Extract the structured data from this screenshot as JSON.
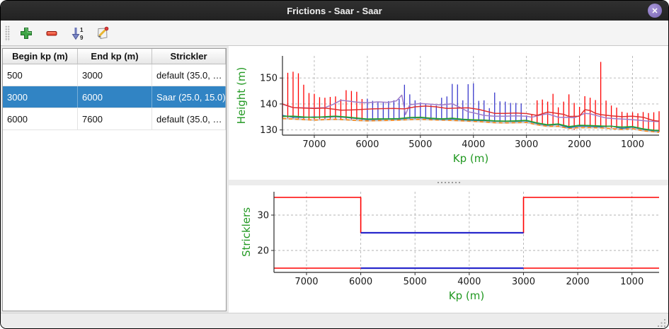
{
  "window": {
    "title": "Frictions - Saar - Saar",
    "close_glyph": "✕"
  },
  "toolbar": {
    "buttons": [
      {
        "name": "add",
        "icon": "plus-icon"
      },
      {
        "name": "remove",
        "icon": "minus-icon"
      },
      {
        "name": "sort",
        "icon": "sort-numeric-icon"
      },
      {
        "name": "edit",
        "icon": "edit-icon"
      }
    ]
  },
  "table": {
    "columns": [
      "Begin kp (m)",
      "End kp (m)",
      "Strickler"
    ],
    "rows": [
      {
        "begin": "500",
        "end": "3000",
        "strickler": "default (35.0, …",
        "selected": false
      },
      {
        "begin": "3000",
        "end": "6000",
        "strickler": "Saar (25.0, 15.0)",
        "selected": true
      },
      {
        "begin": "6000",
        "end": "7600",
        "strickler": "default (35.0, …",
        "selected": false
      }
    ],
    "selected_color": "#3184c4"
  },
  "chart_data": [
    {
      "type": "line",
      "title": "",
      "xlabel": "Kp (m)",
      "ylabel": "Height (m)",
      "label_color": "#229922",
      "x_range": [
        7600,
        500
      ],
      "x_reversed": true,
      "y_range": [
        128,
        158.5
      ],
      "x_ticks": [
        7000,
        6000,
        5000,
        4000,
        3000,
        2000,
        1000
      ],
      "y_ticks": [
        130,
        140,
        150
      ],
      "grid": true,
      "cross_sections": {
        "color": "#ff0000",
        "selected_color": "#3a3acc",
        "selected_kp_range": [
          3000,
          6000
        ],
        "kp": [
          7600,
          7500,
          7400,
          7300,
          7200,
          7100,
          7000,
          6900,
          6800,
          6700,
          6600,
          6500,
          6400,
          6300,
          6200,
          6100,
          6000,
          5900,
          5800,
          5700,
          5600,
          5500,
          5400,
          5300,
          5200,
          5100,
          5000,
          4900,
          4800,
          4700,
          4600,
          4500,
          4400,
          4300,
          4200,
          4100,
          4000,
          3900,
          3800,
          3700,
          3600,
          3500,
          3400,
          3300,
          3200,
          3100,
          3000,
          2900,
          2800,
          2700,
          2600,
          2500,
          2400,
          2300,
          2200,
          2100,
          2000,
          1900,
          1800,
          1700,
          1600,
          1500,
          1400,
          1300,
          1200,
          1100,
          1000,
          900,
          800,
          700,
          600,
          500
        ],
        "top": [
          150.2,
          152.0,
          152.4,
          151.8,
          147.4,
          144.2,
          143.9,
          142.6,
          142.4,
          142.7,
          142.9,
          141.8,
          145.3,
          145.0,
          144.7,
          141.9,
          142.0,
          141.2,
          140.9,
          140.6,
          141.1,
          141.4,
          141.9,
          147.4,
          143.7,
          141.4,
          140.6,
          140.1,
          139.6,
          139.4,
          142.4,
          142.9,
          147.7,
          147.5,
          141.4,
          147.6,
          147.9,
          141.2,
          141.4,
          138.4,
          144.4,
          141.0,
          140.9,
          140.4,
          140.4,
          140.2,
          135.6,
          136.1,
          141.4,
          141.7,
          140.9,
          143.9,
          138.7,
          140.9,
          143.7,
          140.4,
          138.9,
          143.0,
          142.4,
          141.5,
          156.2,
          141.3,
          139.4,
          138.6,
          137.0,
          136.6,
          136.8,
          136.4,
          136.9,
          136.5,
          136.8,
          137.2
        ],
        "bottom": [
          134.5,
          134.4,
          134.3,
          134.2,
          134.1,
          134.0,
          133.9,
          134.0,
          134.1,
          134.2,
          134.2,
          134.1,
          134.0,
          133.9,
          133.8,
          133.7,
          133.6,
          133.6,
          133.7,
          133.7,
          133.8,
          133.8,
          133.9,
          133.9,
          134.1,
          134.2,
          134.2,
          134.1,
          134.0,
          133.9,
          133.9,
          133.8,
          133.8,
          133.7,
          133.6,
          133.5,
          133.4,
          133.3,
          133.2,
          133.0,
          132.9,
          132.8,
          132.8,
          132.9,
          132.9,
          133.0,
          133.0,
          132.5,
          132.1,
          131.8,
          131.5,
          131.4,
          131.5,
          131.1,
          130.7,
          130.0,
          131.0,
          131.1,
          131.0,
          130.9,
          130.9,
          130.8,
          130.6,
          130.4,
          130.3,
          130.4,
          130.6,
          130.2,
          129.8,
          129.6,
          129.4,
          129.2
        ]
      },
      "series": [
        {
          "name": "bottom-base-gray",
          "color": "#c9c9c9",
          "width": 2.2,
          "dash": null,
          "x": [
            7600,
            7400,
            7200,
            7000,
            6800,
            6600,
            6400,
            6200,
            6000,
            5800,
            5600,
            5400,
            5200,
            5000,
            4800,
            4600,
            4400,
            4200,
            4000,
            3800,
            3600,
            3400,
            3200,
            3000,
            2800,
            2600,
            2400,
            2200,
            2000,
            1800,
            1600,
            1400,
            1200,
            1000,
            800,
            600,
            500
          ],
          "y": [
            134.4,
            134.2,
            134.0,
            133.8,
            134.0,
            134.1,
            133.9,
            133.7,
            133.5,
            133.6,
            133.7,
            133.8,
            134.0,
            134.1,
            133.9,
            133.8,
            133.7,
            133.5,
            133.3,
            133.1,
            132.8,
            132.7,
            132.8,
            132.9,
            132.0,
            131.4,
            131.4,
            130.6,
            130.9,
            130.9,
            130.8,
            130.5,
            130.2,
            130.5,
            129.7,
            129.3,
            129.1
          ]
        },
        {
          "name": "bottom-orange-dashed",
          "color": "#ff8c1a",
          "width": 1.7,
          "dash": "5,4",
          "x": [
            7600,
            7400,
            7200,
            7000,
            6800,
            6600,
            6400,
            6200,
            6000,
            5800,
            5600,
            5400,
            5200,
            5000,
            4800,
            4600,
            4400,
            4200,
            4000,
            3800,
            3600,
            3400,
            3200,
            3000,
            2800,
            2600,
            2400,
            2200,
            2000,
            1800,
            1600,
            1400,
            1200,
            1000,
            800,
            600,
            500
          ],
          "y": [
            134.4,
            134.2,
            134.0,
            133.8,
            134.0,
            134.1,
            133.9,
            133.7,
            133.5,
            133.6,
            133.7,
            133.8,
            134.0,
            134.1,
            133.9,
            133.8,
            133.7,
            133.5,
            133.3,
            133.1,
            132.8,
            132.7,
            132.8,
            132.9,
            132.0,
            131.4,
            131.4,
            130.6,
            130.9,
            130.9,
            130.8,
            130.5,
            130.2,
            130.5,
            129.7,
            129.3,
            129.1
          ]
        },
        {
          "name": "blue-line",
          "color": "#1f77b4",
          "width": 1.5,
          "dash": null,
          "x": [
            7600,
            7400,
            7200,
            7000,
            6800,
            6600,
            6400,
            6200,
            6000,
            5800,
            5600,
            5400,
            5200,
            5000,
            4800,
            4600,
            4400,
            4200,
            4000,
            3800,
            3600,
            3400,
            3200,
            3000,
            2800,
            2600,
            2400,
            2200,
            2000,
            1800,
            1600,
            1400,
            1200,
            1000,
            800,
            600,
            500
          ],
          "y": [
            135.6,
            134.9,
            134.8,
            135.0,
            134.9,
            135.1,
            134.8,
            134.4,
            134.0,
            134.1,
            134.2,
            134.2,
            134.6,
            134.7,
            134.3,
            134.1,
            134.2,
            133.9,
            133.7,
            133.6,
            133.4,
            133.3,
            133.3,
            133.5,
            132.5,
            131.8,
            132.1,
            130.9,
            131.5,
            131.4,
            131.2,
            131.5,
            130.6,
            131.1,
            130.2,
            129.7,
            129.6
          ]
        },
        {
          "name": "green-line",
          "color": "#2ca02c",
          "width": 1.6,
          "dash": null,
          "x": [
            7600,
            7400,
            7200,
            7000,
            6800,
            6600,
            6400,
            6200,
            6000,
            5800,
            5600,
            5400,
            5200,
            5000,
            4800,
            4600,
            4400,
            4200,
            4000,
            3800,
            3600,
            3400,
            3200,
            3000,
            2800,
            2600,
            2400,
            2200,
            2000,
            1800,
            1600,
            1400,
            1200,
            1000,
            800,
            600,
            500
          ],
          "y": [
            135.2,
            135.3,
            135.0,
            134.8,
            135.1,
            135.3,
            135.0,
            134.6,
            134.2,
            134.3,
            134.3,
            134.4,
            134.8,
            134.9,
            134.5,
            134.3,
            134.5,
            134.1,
            133.9,
            133.8,
            133.5,
            133.4,
            133.5,
            133.7,
            132.7,
            132.0,
            132.3,
            131.3,
            131.8,
            131.7,
            131.5,
            131.4,
            131.1,
            131.3,
            130.4,
            129.9,
            129.8
          ]
        },
        {
          "name": "purple-line",
          "color": "#a07cc8",
          "width": 1.5,
          "dash": null,
          "x": [
            7600,
            7400,
            7200,
            7000,
            6800,
            6650,
            6500,
            6400,
            6200,
            6000,
            5800,
            5600,
            5450,
            5350,
            5280,
            5200,
            5000,
            4800,
            4600,
            4400,
            4200,
            4100,
            4000,
            3800,
            3600,
            3400,
            3200,
            3000,
            2900,
            2700,
            2600,
            2400,
            2200,
            2100,
            1900,
            1800,
            1650,
            1500,
            1300,
            1100,
            900,
            700,
            500
          ],
          "y": [
            139.9,
            138.6,
            138.5,
            138.4,
            138.6,
            139.8,
            141.4,
            141.2,
            140.7,
            140.5,
            140.8,
            140.6,
            141.2,
            143.4,
            135.9,
            139.7,
            140.2,
            139.9,
            139.6,
            140.1,
            138.1,
            137.0,
            136.6,
            135.6,
            135.3,
            135.3,
            135.4,
            135.3,
            134.9,
            135.9,
            136.2,
            134.9,
            134.8,
            134.7,
            136.4,
            136.2,
            135.4,
            134.6,
            134.3,
            134.1,
            133.8,
            133.4,
            133.2
          ]
        },
        {
          "name": "red-line",
          "color": "#e03030",
          "width": 1.5,
          "dash": null,
          "x": [
            7600,
            7400,
            7200,
            7000,
            6800,
            6600,
            6500,
            6300,
            6100,
            5900,
            5700,
            5500,
            5300,
            5100,
            4900,
            4700,
            4500,
            4300,
            4100,
            3900,
            3800,
            3600,
            3400,
            3200,
            3000,
            2800,
            2600,
            2500,
            2300,
            2200,
            2000,
            1900,
            1800,
            1700,
            1600,
            1400,
            1200,
            1000,
            800,
            700,
            600,
            500
          ],
          "y": [
            140.0,
            138.6,
            138.4,
            138.3,
            138.4,
            137.9,
            137.6,
            137.7,
            137.9,
            138.1,
            138.2,
            138.3,
            138.1,
            138.9,
            139.2,
            138.9,
            138.3,
            138.4,
            138.5,
            137.9,
            137.4,
            136.4,
            136.4,
            136.5,
            136.3,
            135.6,
            136.9,
            136.6,
            136.0,
            135.2,
            135.3,
            137.8,
            137.5,
            136.4,
            135.9,
            135.4,
            135.1,
            135.3,
            134.9,
            134.2,
            133.6,
            133.4
          ]
        }
      ]
    },
    {
      "type": "step",
      "title": "",
      "xlabel": "Kp (m)",
      "ylabel": "Stricklers",
      "label_color": "#229922",
      "x_range": [
        7600,
        500
      ],
      "x_reversed": true,
      "y_range": [
        13.8,
        36.6
      ],
      "x_ticks": [
        7000,
        6000,
        5000,
        4000,
        3000,
        2000,
        1000
      ],
      "y_ticks": [
        20,
        30
      ],
      "grid": true,
      "series": [
        {
          "name": "strickler-major",
          "color": "#ff0000",
          "width": 1.6,
          "dash": null,
          "x": [
            7600,
            6000,
            6000,
            3000,
            3000,
            500
          ],
          "y": [
            35,
            35,
            25,
            25,
            35,
            35
          ]
        },
        {
          "name": "strickler-minor",
          "color": "#ff0000",
          "width": 1.6,
          "dash": null,
          "x": [
            7600,
            500
          ],
          "y": [
            15,
            15
          ]
        },
        {
          "name": "selected-segment-major",
          "color": "#2828cc",
          "width": 2.2,
          "dash": null,
          "x": [
            6000,
            3000
          ],
          "y": [
            25,
            25
          ]
        },
        {
          "name": "selected-segment-minor",
          "color": "#2828cc",
          "width": 2.2,
          "dash": null,
          "x": [
            6000,
            3000
          ],
          "y": [
            15,
            15
          ]
        }
      ]
    }
  ]
}
